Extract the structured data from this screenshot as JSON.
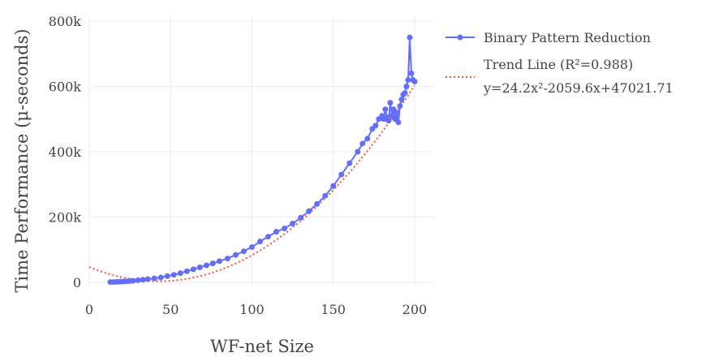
{
  "chart_data": {
    "type": "line",
    "title": "",
    "xlabel": "WF-net Size",
    "ylabel": "Time Performance (μ-seconds)",
    "xlim": [
      0,
      212
    ],
    "ylim": [
      -10000,
      820000
    ],
    "x_ticks": [
      0,
      50,
      100,
      150,
      200
    ],
    "x_tick_labels": [
      "0",
      "50",
      "100",
      "150",
      "200"
    ],
    "y_ticks": [
      0,
      200000,
      400000,
      600000,
      800000
    ],
    "y_tick_labels": [
      "0",
      "200k",
      "400k",
      "600k",
      "800k"
    ],
    "grid": true,
    "legend_position": "right",
    "colors": {
      "series": "#636efa",
      "trend": "#ef553b",
      "grid": "#e9edf5"
    },
    "series": [
      {
        "name": "Binary Pattern Reduction",
        "style": "lines+markers",
        "x": [
          13,
          15,
          17,
          19,
          21,
          23,
          25,
          27,
          30,
          33,
          36,
          40,
          44,
          48,
          52,
          56,
          60,
          64,
          68,
          72,
          76,
          80,
          85,
          90,
          95,
          100,
          105,
          110,
          115,
          120,
          125,
          130,
          135,
          140,
          145,
          150,
          155,
          160,
          165,
          168,
          171,
          174,
          176,
          178,
          180,
          181,
          182,
          183,
          184,
          185,
          186,
          187,
          188,
          189,
          190,
          191,
          192,
          193,
          194,
          195,
          196,
          197,
          198,
          199,
          200
        ],
        "y": [
          1000,
          1000,
          1500,
          2000,
          2500,
          3000,
          4000,
          5000,
          6500,
          8000,
          10000,
          12000,
          15000,
          19000,
          23000,
          28000,
          34000,
          40000,
          46000,
          52000,
          58000,
          65000,
          73000,
          84000,
          95000,
          108000,
          125000,
          140000,
          155000,
          165000,
          180000,
          198000,
          218000,
          240000,
          265000,
          295000,
          330000,
          365000,
          400000,
          425000,
          440000,
          470000,
          480000,
          500000,
          510000,
          500000,
          530000,
          505000,
          495000,
          550000,
          510000,
          530000,
          500000,
          520000,
          490000,
          540000,
          560000,
          575000,
          580000,
          600000,
          620000,
          750000,
          640000,
          620000,
          615000
        ]
      },
      {
        "name": "Trend Line (R²=0.988)",
        "name_line2": "y=24.2x²-2059.6x+47021.71",
        "style": "dotted",
        "equation": {
          "a": 24.2,
          "b": -2059.6,
          "c": 47021.71
        },
        "x_range": [
          0,
          200
        ]
      }
    ]
  }
}
